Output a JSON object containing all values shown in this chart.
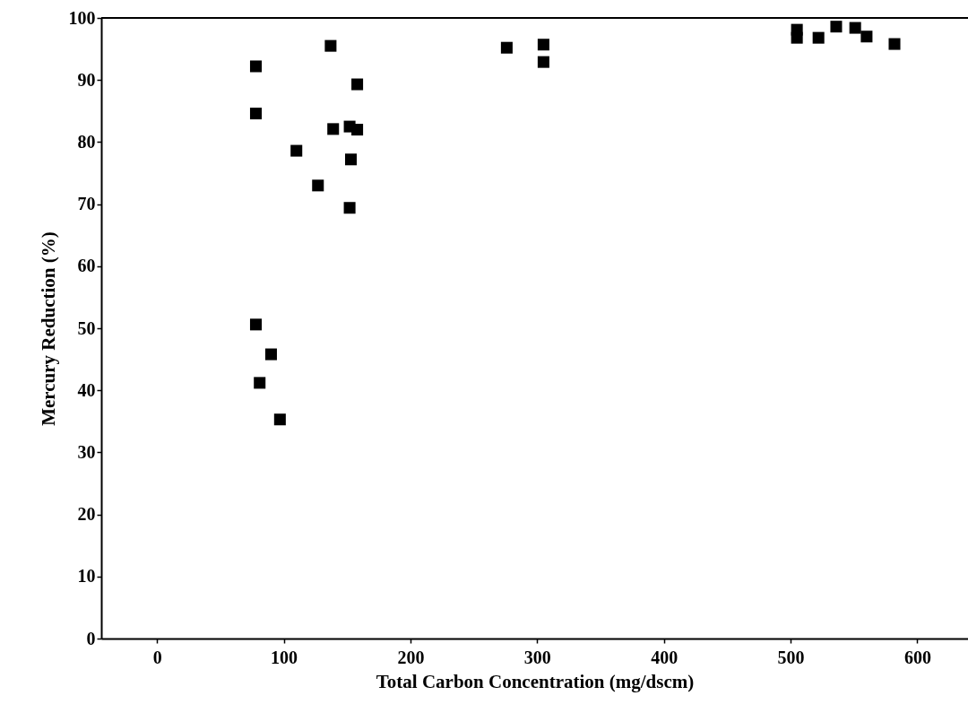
{
  "chart_data": {
    "type": "scatter",
    "xlabel": "Total Carbon Concentration (mg/dscm)",
    "ylabel": "Mercury Reduction (%)",
    "x": [
      78,
      78,
      137,
      158,
      110,
      139,
      152,
      158,
      153,
      127,
      152,
      78,
      90,
      81,
      97,
      276,
      305,
      305,
      505,
      505,
      522,
      536,
      551,
      560,
      582
    ],
    "series": [
      {
        "color": "#000000",
        "values": [
          92.2,
          84.6,
          95.5,
          89.3,
          78.6,
          82.1,
          82.5,
          82,
          77.2,
          73,
          69.4,
          50.6,
          45.8,
          41.2,
          35.3,
          95.2,
          95.7,
          92.9,
          98.1,
          96.8,
          96.8,
          98.6,
          98.4,
          97,
          95.8
        ]
      }
    ],
    "xlim": [
      -44,
      640
    ],
    "xticks": [
      0,
      100,
      200,
      300,
      400,
      500,
      600
    ],
    "ylim": [
      0,
      100
    ],
    "yticks": [
      0,
      10,
      20,
      30,
      40,
      50,
      60,
      70,
      80,
      90,
      100
    ],
    "marker": "square",
    "grid": false,
    "legend": false
  }
}
